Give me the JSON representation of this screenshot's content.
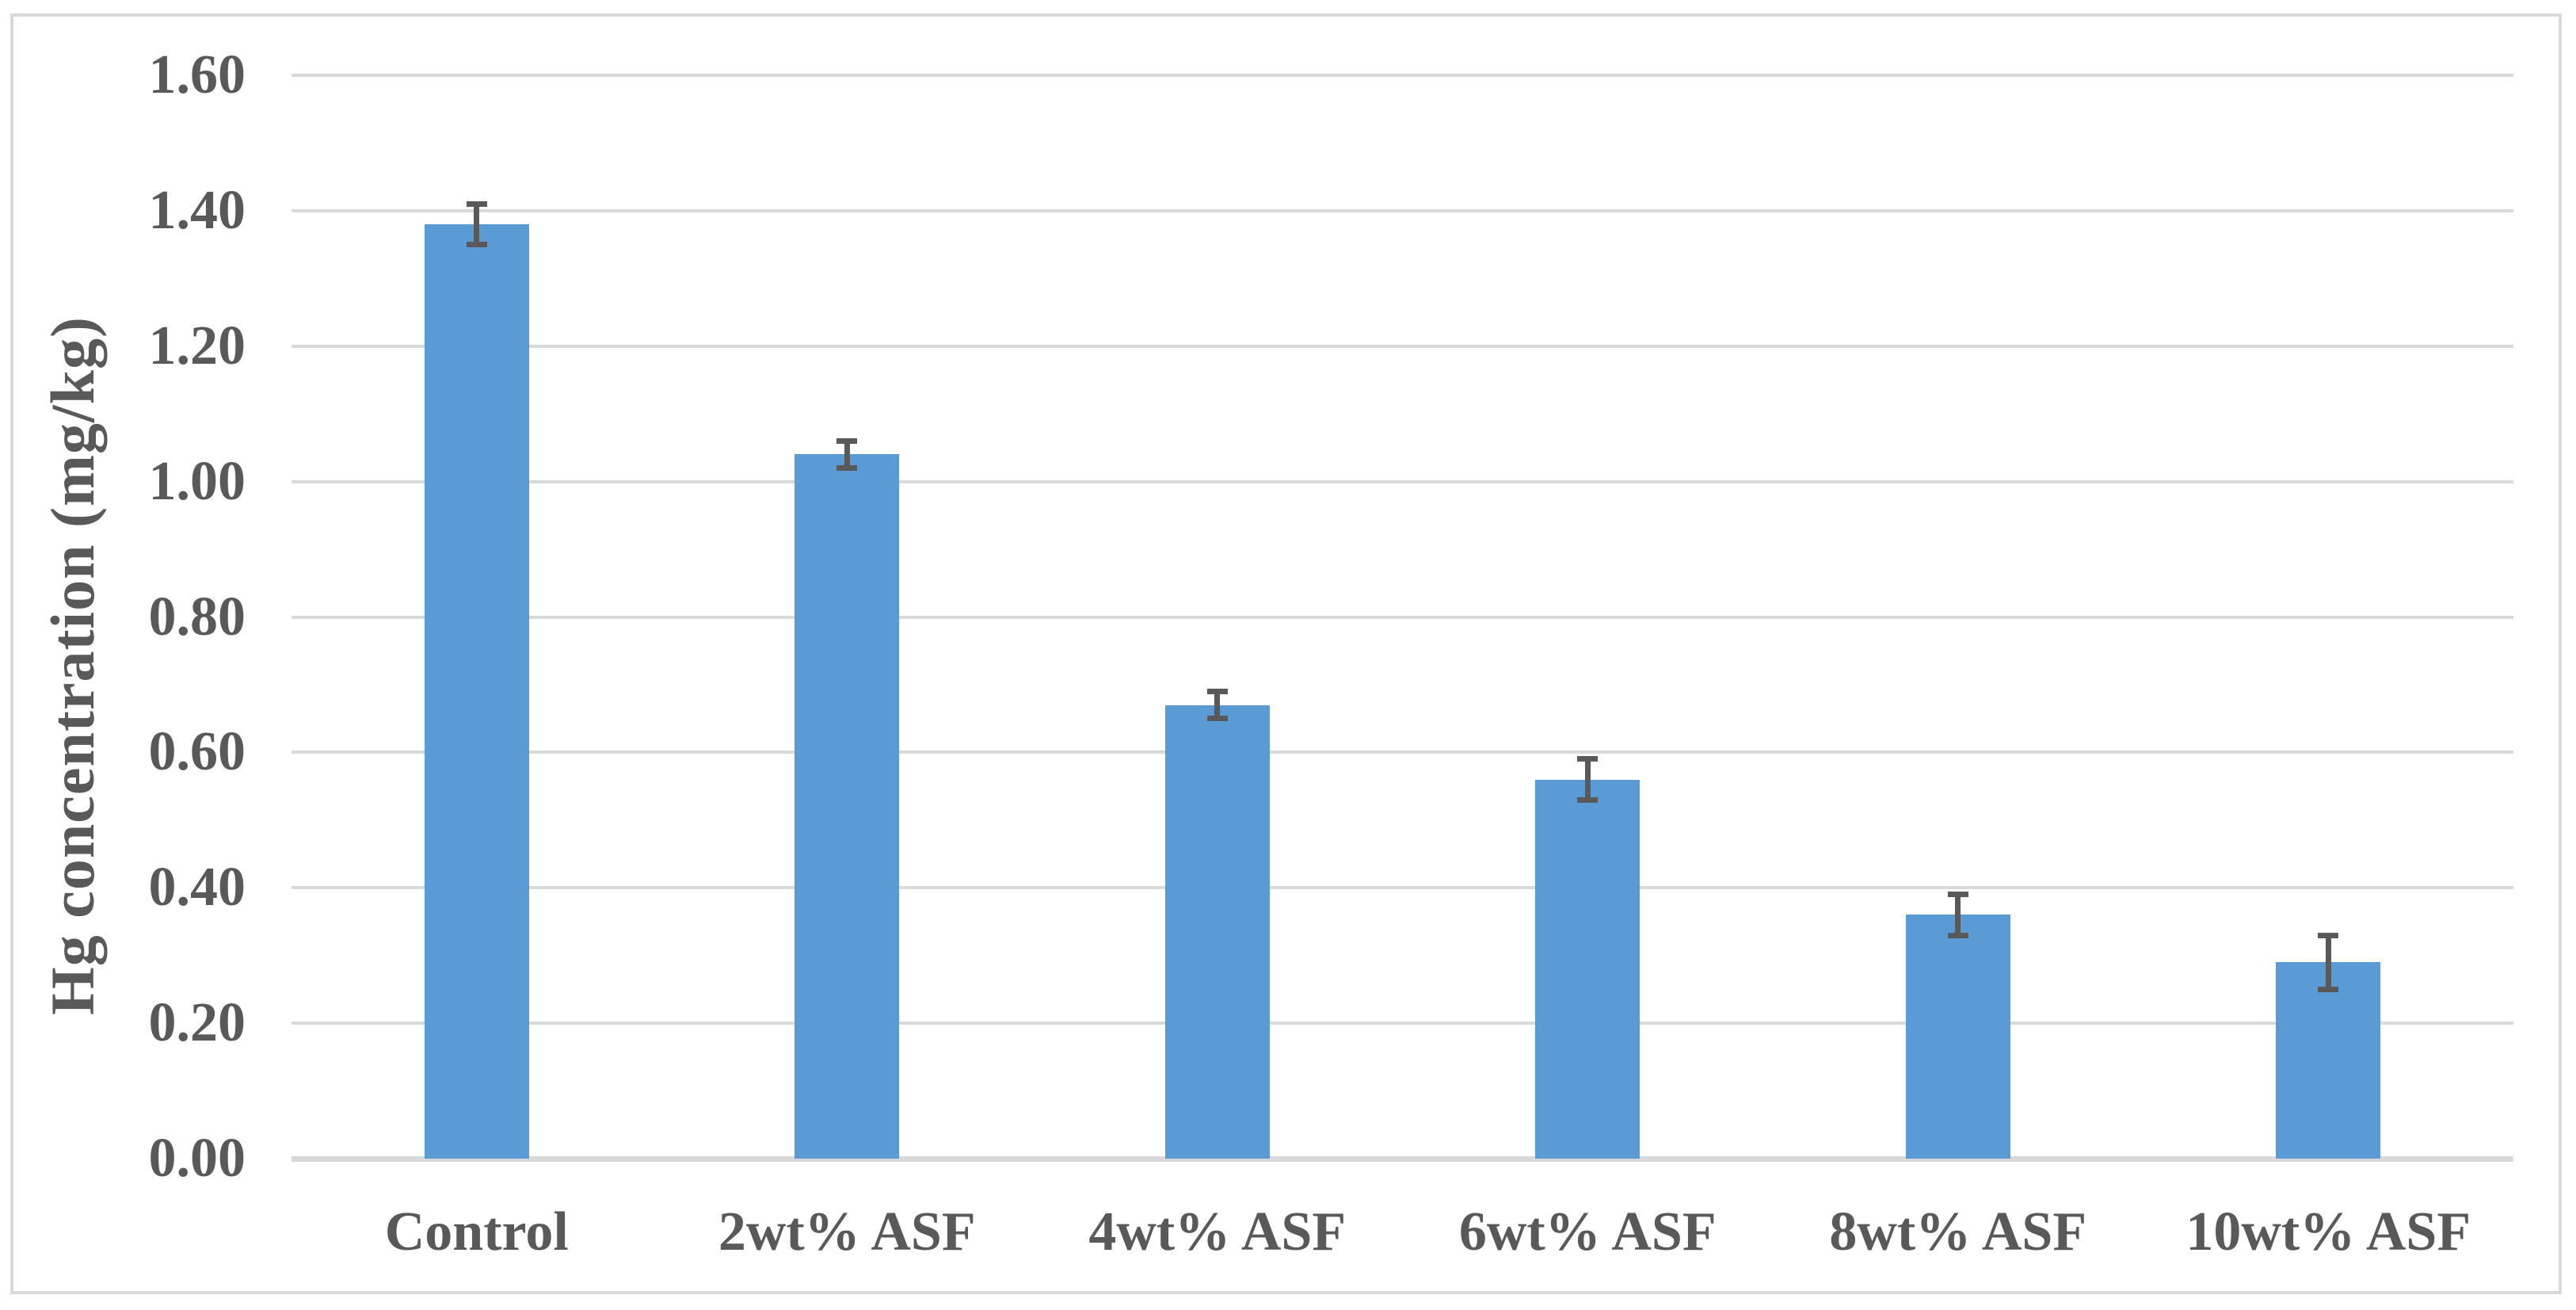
{
  "chart_data": {
    "type": "bar",
    "categories": [
      "Control",
      "2wt% ASF",
      "4wt% ASF",
      "6wt% ASF",
      "8wt% ASF",
      "10wt% ASF"
    ],
    "values": [
      1.38,
      1.04,
      0.67,
      0.56,
      0.36,
      0.29
    ],
    "error_bars": [
      0.03,
      0.02,
      0.02,
      0.03,
      0.03,
      0.04
    ],
    "title": "",
    "xlabel": "",
    "ylabel": "Hg concentration (mg/kg)",
    "ylim": [
      0.0,
      1.6
    ],
    "ytick_step": 0.2,
    "ytick_labels": [
      "0.00",
      "0.20",
      "0.40",
      "0.60",
      "0.80",
      "1.00",
      "1.20",
      "1.40",
      "1.60"
    ],
    "grid": true,
    "legend": "none",
    "colors": {
      "bar": "#5B9BD5",
      "error_bar": "#595959",
      "gridline": "#D9D9D9",
      "axis_line": "#D9D9D9",
      "text": "#595959",
      "frame_border": "#D9D9D9",
      "background": "#FFFFFF"
    }
  }
}
